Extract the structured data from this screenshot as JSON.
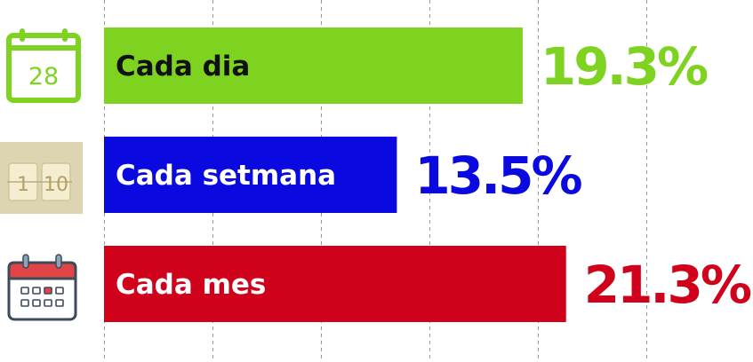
{
  "chart_data": {
    "type": "bar",
    "orientation": "horizontal",
    "categories": [
      "Cada dia",
      "Cada setmana",
      "Cada mes"
    ],
    "values": [
      19.3,
      13.5,
      21.3
    ],
    "value_labels": [
      "19.3%",
      "13.5%",
      "21.3%"
    ],
    "colors": [
      "#7ed321",
      "#0a0ae0",
      "#d0021b"
    ],
    "label_text_colors": [
      "#111111",
      "#ffffff",
      "#ffffff"
    ],
    "icons": [
      "calendar-day-icon",
      "flip-calendar-icon",
      "calendar-month-icon"
    ],
    "icon_texts": [
      "28",
      "1",
      "10"
    ],
    "xlim": [
      0,
      25
    ],
    "grid": true
  }
}
